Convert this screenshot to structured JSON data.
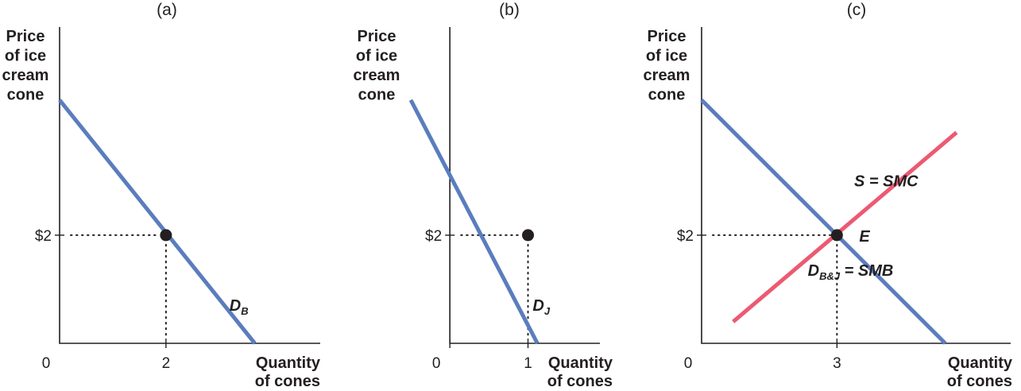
{
  "colors": {
    "demand": "#5b7dbe",
    "supply": "#ec5a72",
    "ink": "#231f20"
  },
  "chart_data": [
    {
      "type": "line",
      "panel_label": "(a)",
      "ylabel_lines": [
        "Price",
        "of ice",
        "cream",
        "cone"
      ],
      "xlabel_lines": [
        "Quantity",
        "of cones"
      ],
      "origin_label": "0",
      "xlim": [
        0,
        4.9
      ],
      "ylim": [
        0,
        5.85
      ],
      "x_ticks": [
        {
          "value": 2,
          "label": "2"
        }
      ],
      "y_ticks": [
        {
          "value": 2,
          "label": "$2"
        }
      ],
      "series": [
        {
          "name": "D_B",
          "label_main": "D",
          "label_sub": "B",
          "role": "demand",
          "x": [
            0,
            3.67
          ],
          "y": [
            4.5,
            0
          ],
          "label_at": [
            3.55,
            0.6
          ]
        }
      ],
      "points": [
        {
          "x": 2,
          "y": 2,
          "label": ""
        }
      ],
      "guides": [
        {
          "x": 2,
          "y": 2
        }
      ]
    },
    {
      "type": "line",
      "panel_label": "(b)",
      "ylabel_lines": [
        "Price",
        "of ice",
        "cream",
        "cone"
      ],
      "xlabel_lines": [
        "Quantity",
        "of cones"
      ],
      "origin_label": "0",
      "x_origin_at": 0,
      "xlim": [
        -0.5,
        1.92
      ],
      "ylim": [
        0,
        5.85
      ],
      "x_ticks": [
        {
          "value": 0,
          "label": ""
        },
        {
          "value": 1,
          "label": "1"
        }
      ],
      "y_ticks": [
        {
          "value": 2,
          "label": "$2"
        }
      ],
      "series": [
        {
          "name": "D_J",
          "label_main": "D",
          "label_sub": "J",
          "role": "demand",
          "x": [
            -0.5,
            1.12
          ],
          "y": [
            4.5,
            0
          ],
          "label_at": [
            1.28,
            0.6
          ]
        }
      ],
      "points": [
        {
          "x": 1,
          "y": 2,
          "label": ""
        }
      ],
      "guides": [
        {
          "x": 1,
          "y": 2
        }
      ]
    },
    {
      "type": "line",
      "panel_label": "(c)",
      "ylabel_lines": [
        "Price",
        "of ice",
        "cream",
        "cone"
      ],
      "xlabel_lines": [
        "Quantity",
        "of cones"
      ],
      "origin_label": "0",
      "xlim": [
        0,
        6.85
      ],
      "ylim": [
        0,
        5.85
      ],
      "x_ticks": [
        {
          "value": 3,
          "label": "3"
        }
      ],
      "y_ticks": [
        {
          "value": 2,
          "label": "$2"
        }
      ],
      "series": [
        {
          "name": "D_B&J = SMB",
          "label_main": "D",
          "label_sub": "B&J",
          "label_tail": " = SMB",
          "role": "demand",
          "x": [
            0,
            5.4
          ],
          "y": [
            4.5,
            0
          ],
          "label_at": [
            4.25,
            1.25
          ]
        },
        {
          "name": "S = SMC",
          "label_main": "S = SMC",
          "role": "supply",
          "x": [
            0.7,
            5.65
          ],
          "y": [
            0.4,
            3.9
          ],
          "label_at": [
            4.8,
            2.9
          ]
        }
      ],
      "points": [
        {
          "x": 3,
          "y": 2,
          "label": "E"
        }
      ],
      "guides": [
        {
          "x": 3,
          "y": 2
        }
      ]
    }
  ]
}
